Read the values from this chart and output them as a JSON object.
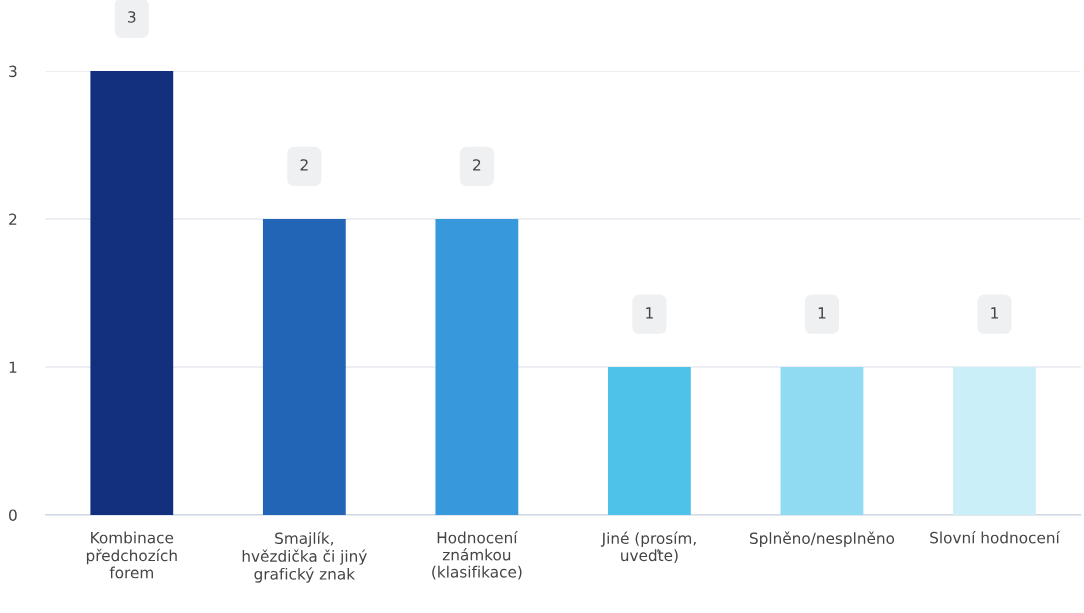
{
  "chart_data": {
    "type": "bar",
    "categories": [
      "Kombinace\npředchozích\nforem",
      "Smajlík,\nhvězdička či jiný\ngrafický znak",
      "Hodnocení\nznámkou\n(klasifikace)",
      "Jiné (prosím,\nuveďte)",
      "Splněno/nesplněno",
      "Slovní hodnocení"
    ],
    "values": [
      3,
      2,
      2,
      1,
      1,
      1
    ],
    "colors": [
      "#13307e",
      "#2264b6",
      "#3798dc",
      "#4fc2ea",
      "#90dbf2",
      "#cbeff9"
    ],
    "ylim": [
      0,
      3
    ],
    "yticks": [
      0,
      1,
      2,
      3
    ],
    "grid": "y",
    "data_labels": true,
    "legend": false
  }
}
